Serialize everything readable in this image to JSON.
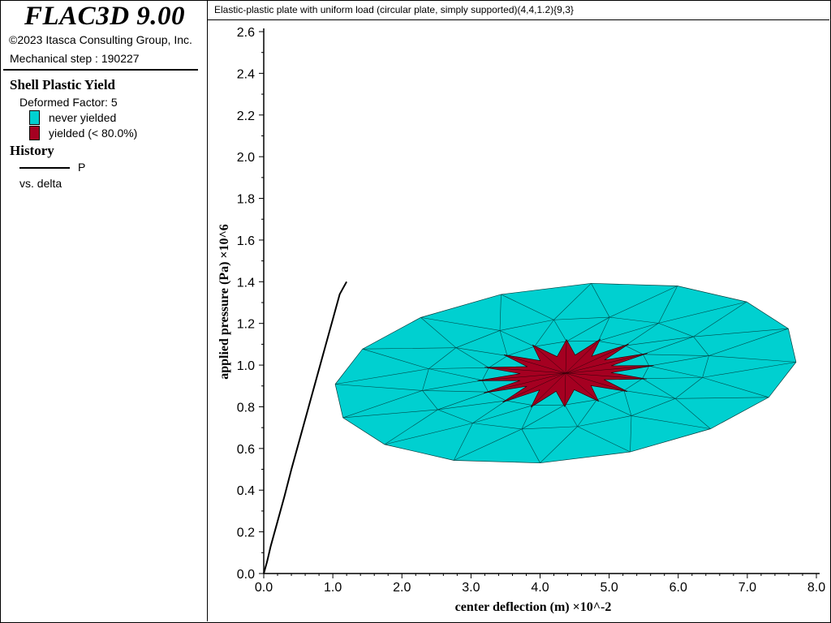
{
  "app": {
    "title": "FLAC3D 9.00",
    "copyright": "©2023 Itasca Consulting Group, Inc.",
    "mechanical_step": "Mechanical step : 190227"
  },
  "legend": {
    "shell_title": "Shell Plastic Yield",
    "deformed_factor": "Deformed Factor: 5",
    "items": [
      {
        "label": "never yielded",
        "color": "#00d0d0"
      },
      {
        "label": "yielded (< 80.0%)",
        "color": "#a50021"
      }
    ],
    "history_title": "History",
    "history_series": "P",
    "history_vs": "vs. delta"
  },
  "plot_title": "Elastic-plastic plate with uniform load (circular plate, simply supported)(4,4,1.2){9,3}",
  "chart_data": {
    "type": "line",
    "xlabel": "center deflection (m) ×10^-2",
    "ylabel": "applied pressure (Pa) ×10^6",
    "xlim": [
      0,
      8.0
    ],
    "ylim": [
      0,
      2.6
    ],
    "x_ticks": [
      "0.0",
      "1.0",
      "2.0",
      "3.0",
      "4.0",
      "5.0",
      "6.0",
      "7.0",
      "8.0"
    ],
    "y_ticks": [
      "0.0",
      "0.2",
      "0.4",
      "0.6",
      "0.8",
      "1.0",
      "1.2",
      "1.4",
      "1.6",
      "1.8",
      "2.0",
      "2.2",
      "2.4",
      "2.6"
    ],
    "series": [
      {
        "name": "P",
        "color": "#000000",
        "x": [
          0.0,
          0.05,
          0.1,
          0.2,
          0.3,
          0.4,
          0.5,
          0.6,
          0.7,
          0.8,
          0.9,
          1.0,
          1.1,
          1.2
        ],
        "y": [
          0.0,
          0.06,
          0.13,
          0.25,
          0.37,
          0.5,
          0.62,
          0.74,
          0.86,
          0.98,
          1.1,
          1.22,
          1.34,
          1.4
        ]
      }
    ],
    "grid": false
  }
}
